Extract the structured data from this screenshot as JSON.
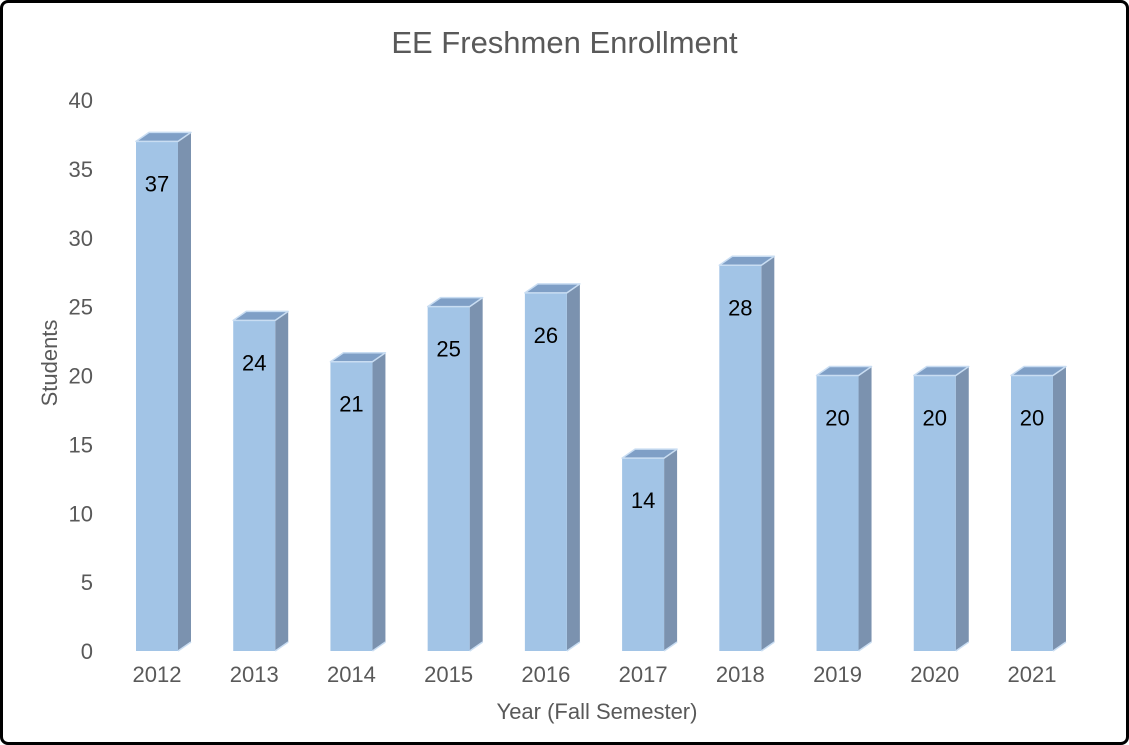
{
  "chart_data": {
    "type": "bar",
    "style": "3d-effect-column",
    "title": "EE Freshmen Enrollment",
    "xlabel": "Year (Fall Semester)",
    "ylabel": "Students",
    "categories": [
      "2012",
      "2013",
      "2014",
      "2015",
      "2016",
      "2017",
      "2018",
      "2019",
      "2020",
      "2021"
    ],
    "values": [
      37,
      24,
      21,
      25,
      26,
      14,
      28,
      20,
      20,
      20
    ],
    "ylim": [
      0,
      40
    ],
    "yticks": [
      0,
      5,
      10,
      15,
      20,
      25,
      30,
      35,
      40
    ],
    "grid": false,
    "legend": "none",
    "data_labels": "inside-end",
    "colors": {
      "bar_front": "#A2C4E6",
      "bar_top": "#7F9FC6",
      "bar_side": "#7B92AF",
      "bar_highlight": "#C9DDF2",
      "axis_text": "#595959",
      "title_text": "#595959",
      "data_label_text": "#000000",
      "background": "#FFFFFF",
      "frame_border": "#000000"
    }
  }
}
